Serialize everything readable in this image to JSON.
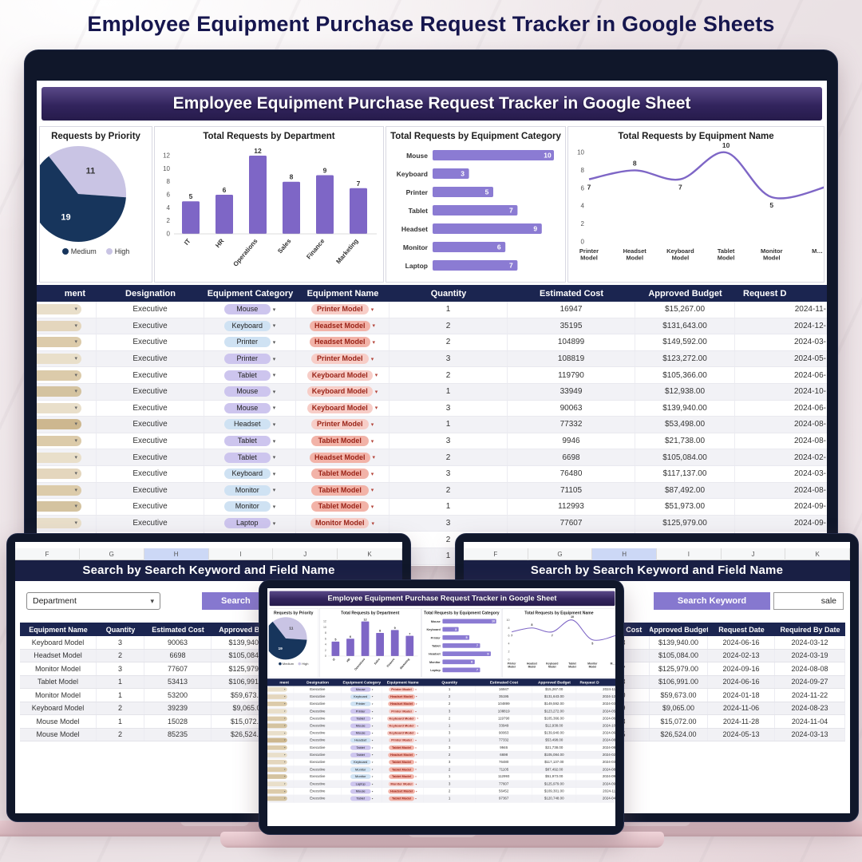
{
  "poster_title": "Employee Equipment Purchase Request Tracker in Google Sheets",
  "dashboard": {
    "header": "Employee Equipment Purchase Request Tracker in Google Sheet",
    "table": {
      "headers": [
        "ment",
        "Designation",
        "Equipment Category",
        "Equipment Name",
        "Quantity",
        "Estimated Cost",
        "Approved Budget",
        "Request D"
      ],
      "rows": [
        {
          "dept_color": "#e9dfca",
          "designation": "Executive",
          "category": "Mouse",
          "category_color": "#cdc5ee",
          "name": "Printer Model",
          "name_color": "#f7cdc7",
          "qty": "1",
          "cost": "16947",
          "budget": "$15,267.00",
          "date": "2024-11-"
        },
        {
          "dept_color": "#e4d6bd",
          "designation": "Executive",
          "category": "Keyboard",
          "category_color": "#cfe2f3",
          "name": "Headset Model",
          "name_color": "#f2b3a8",
          "qty": "2",
          "cost": "35195",
          "budget": "$131,643.00",
          "date": "2024-12-"
        },
        {
          "dept_color": "#dccbaa",
          "designation": "Executive",
          "category": "Printer",
          "category_color": "#cfe2f3",
          "name": "Headset Model",
          "name_color": "#f2b3a8",
          "qty": "2",
          "cost": "104899",
          "budget": "$149,592.00",
          "date": "2024-03-"
        },
        {
          "dept_color": "#e9dfca",
          "designation": "Executive",
          "category": "Printer",
          "category_color": "#cdc5ee",
          "name": "Printer Model",
          "name_color": "#f7cdc7",
          "qty": "3",
          "cost": "108819",
          "budget": "$123,272.00",
          "date": "2024-05-"
        },
        {
          "dept_color": "#dccbaa",
          "designation": "Executive",
          "category": "Tablet",
          "category_color": "#cdc5ee",
          "name": "Keyboard Model",
          "name_color": "#f7cdc7",
          "qty": "2",
          "cost": "119790",
          "budget": "$105,366.00",
          "date": "2024-06-"
        },
        {
          "dept_color": "#d4c3a0",
          "designation": "Executive",
          "category": "Mouse",
          "category_color": "#cdc5ee",
          "name": "Keyboard Model",
          "name_color": "#f7cdc7",
          "qty": "1",
          "cost": "33949",
          "budget": "$12,938.00",
          "date": "2024-10-"
        },
        {
          "dept_color": "#e9dfca",
          "designation": "Executive",
          "category": "Mouse",
          "category_color": "#cdc5ee",
          "name": "Keyboard Model",
          "name_color": "#f7cdc7",
          "qty": "3",
          "cost": "90063",
          "budget": "$139,940.00",
          "date": "2024-06-"
        },
        {
          "dept_color": "#cdb78f",
          "designation": "Executive",
          "category": "Headset",
          "category_color": "#cfe2f3",
          "name": "Printer Model",
          "name_color": "#f7cdc7",
          "qty": "1",
          "cost": "77332",
          "budget": "$53,498.00",
          "date": "2024-08-"
        },
        {
          "dept_color": "#dccbaa",
          "designation": "Executive",
          "category": "Tablet",
          "category_color": "#cdc5ee",
          "name": "Tablet Model",
          "name_color": "#f2b3a8",
          "qty": "3",
          "cost": "9946",
          "budget": "$21,738.00",
          "date": "2024-08-"
        },
        {
          "dept_color": "#e9dfca",
          "designation": "Executive",
          "category": "Tablet",
          "category_color": "#cdc5ee",
          "name": "Headset Model",
          "name_color": "#f2b3a8",
          "qty": "2",
          "cost": "6698",
          "budget": "$105,084.00",
          "date": "2024-02-"
        },
        {
          "dept_color": "#e4d6bd",
          "designation": "Executive",
          "category": "Keyboard",
          "category_color": "#cfe2f3",
          "name": "Tablet Model",
          "name_color": "#f2b3a8",
          "qty": "3",
          "cost": "76480",
          "budget": "$117,137.00",
          "date": "2024-03-"
        },
        {
          "dept_color": "#dccbaa",
          "designation": "Executive",
          "category": "Monitor",
          "category_color": "#cfe2f3",
          "name": "Tablet Model",
          "name_color": "#f2b3a8",
          "qty": "2",
          "cost": "71105",
          "budget": "$87,492.00",
          "date": "2024-08-"
        },
        {
          "dept_color": "#d4c3a0",
          "designation": "Executive",
          "category": "Monitor",
          "category_color": "#cfe2f3",
          "name": "Tablet Model",
          "name_color": "#f2b3a8",
          "qty": "1",
          "cost": "112993",
          "budget": "$51,973.00",
          "date": "2024-09-"
        },
        {
          "dept_color": "#e9dfca",
          "designation": "Executive",
          "category": "Laptop",
          "category_color": "#cdc5ee",
          "name": "Monitor Model",
          "name_color": "#f7cdc7",
          "qty": "3",
          "cost": "77607",
          "budget": "$125,979.00",
          "date": "2024-09-"
        },
        {
          "dept_color": "#dccbaa",
          "designation": "Executive",
          "category": "Mouse",
          "category_color": "#cdc5ee",
          "name": "Headset Model",
          "name_color": "#f2b3a8",
          "qty": "2",
          "cost": "56452",
          "budget": "$109,301.00",
          "date": "2024-11-"
        },
        {
          "dept_color": "#d4c3a0",
          "designation": "Executive",
          "category": "Tablet",
          "category_color": "#cdc5ee",
          "name": "Tablet Model",
          "name_color": "#f2b3a8",
          "qty": "1",
          "cost": "97367",
          "budget": "$120,748.00",
          "date": "2024-04-"
        }
      ]
    }
  },
  "chart_data": [
    {
      "type": "pie",
      "title": "Requests by Priority",
      "slices": [
        {
          "label": "High",
          "value": 11,
          "color": "#c9c4e4",
          "label_color": "#333333"
        },
        {
          "label": "Medium",
          "value": 19,
          "color": "#17355c",
          "label_color": "#ffffff"
        }
      ],
      "legend": [
        {
          "label": "Medium",
          "color": "#17355c"
        },
        {
          "label": "High",
          "color": "#c9c4e4"
        }
      ],
      "start_angle": -38
    },
    {
      "type": "bar",
      "title": "Total Requests by Department",
      "categories": [
        "IT",
        "HR",
        "Operations",
        "Sales",
        "Finance",
        "Marketing"
      ],
      "values": [
        5,
        6,
        12,
        8,
        9,
        7
      ],
      "ylim": [
        0,
        12
      ],
      "yticks": [
        0,
        2,
        4,
        6,
        8,
        10,
        12
      ],
      "color": "#7e66c6"
    },
    {
      "type": "hbar",
      "title": "Total Requests by Equipment Category",
      "categories": [
        "Mouse",
        "Keyboard",
        "Printer",
        "Tablet",
        "Headset",
        "Monitor",
        "Laptop"
      ],
      "values": [
        10,
        3,
        5,
        7,
        9,
        6,
        7
      ],
      "xlim": [
        0,
        10
      ],
      "color": "#8b7bd3"
    },
    {
      "type": "line",
      "title": "Total Requests by Equipment Name",
      "categories": [
        "Printer Model",
        "Headset Model",
        "Keyboard Model",
        "Tablet Model",
        "Monitor Model",
        "M…"
      ],
      "values": [
        7,
        8,
        7,
        10,
        5,
        null
      ],
      "ylim": [
        0,
        10
      ],
      "yticks": [
        0,
        2,
        4,
        6,
        8,
        10
      ],
      "color": "#7e66c6"
    }
  ],
  "search_left": {
    "col_letters": [
      "F",
      "G",
      "H",
      "I",
      "J",
      "K"
    ],
    "highlighted_letter": "H",
    "title": "Search by Search Keyword and Field Name",
    "field_dropdown": "Department",
    "search_button": "Search",
    "headers": [
      "Equipment Name",
      "Quantity",
      "Estimated Cost",
      "Approved Budget"
    ],
    "rows": [
      [
        "Keyboard Model",
        "3",
        "90063",
        "$139,940.00"
      ],
      [
        "Headset Model",
        "2",
        "6698",
        "$105,084.00"
      ],
      [
        "Monitor Model",
        "3",
        "77607",
        "$125,979.00"
      ],
      [
        "Tablet Model",
        "1",
        "53413",
        "$106,991.00"
      ],
      [
        "Monitor Model",
        "1",
        "53200",
        "$59,673.00"
      ],
      [
        "Keyboard Model",
        "2",
        "39239",
        "$9,065.00"
      ],
      [
        "Mouse Model",
        "1",
        "15028",
        "$15,072.00"
      ],
      [
        "Mouse Model",
        "2",
        "85235",
        "$26,524.00"
      ]
    ]
  },
  "search_right": {
    "col_letters": [
      "F",
      "G",
      "H",
      "I",
      "J",
      "K"
    ],
    "highlighted_letter": "H",
    "title": "Search by Search Keyword and Field Name",
    "keyword_label": "Search Keyword",
    "keyword_value": "sale",
    "headers": [
      "Estimated Cost",
      "Approved Budget",
      "Request Date",
      "Required By Date"
    ],
    "rows": [
      [
        "90063",
        "$139,940.00",
        "2024-06-16",
        "2024-03-12"
      ],
      [
        "6698",
        "$105,084.00",
        "2024-02-13",
        "2024-03-19"
      ],
      [
        "77607",
        "$125,979.00",
        "2024-09-16",
        "2024-08-08"
      ],
      [
        "53413",
        "$106,991.00",
        "2024-06-16",
        "2024-09-27"
      ],
      [
        "53200",
        "$59,673.00",
        "2024-01-18",
        "2024-11-22"
      ],
      [
        "39239",
        "$9,065.00",
        "2024-11-06",
        "2024-08-23"
      ],
      [
        "15028",
        "$15,072.00",
        "2024-11-28",
        "2024-11-04"
      ],
      [
        "85235",
        "$26,524.00",
        "2024-05-13",
        "2024-03-13"
      ]
    ]
  }
}
